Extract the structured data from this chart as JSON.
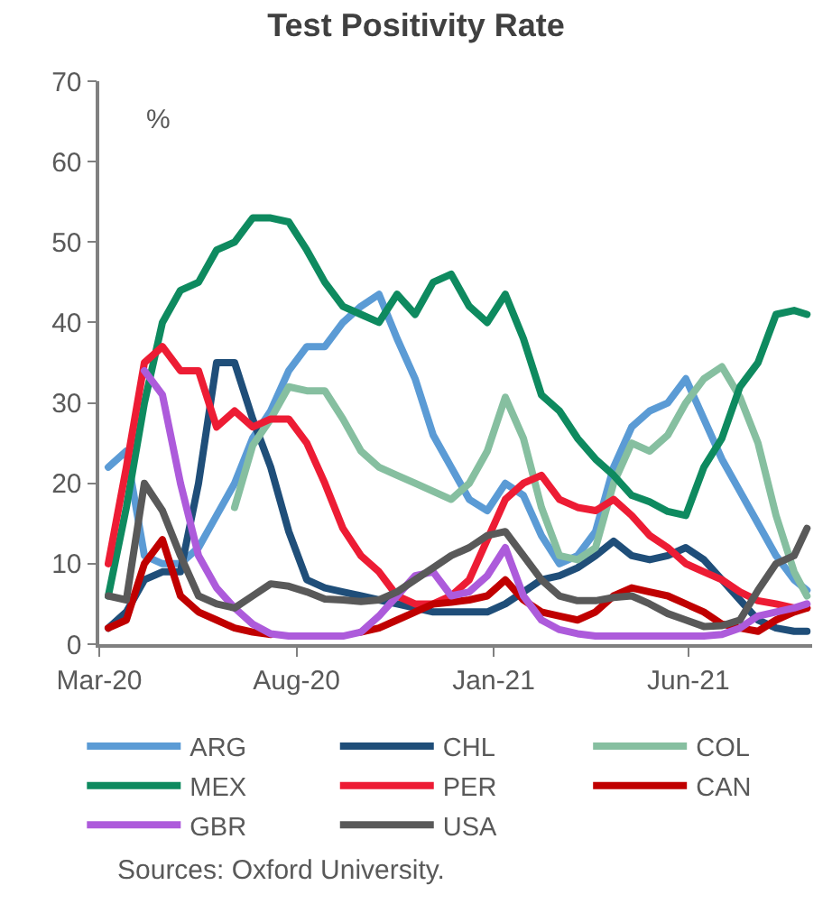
{
  "chart_data": {
    "type": "line",
    "title": "Test Positivity Rate",
    "ylabel": "%",
    "x": [
      "2020-03-08",
      "2020-03-22",
      "2020-04-05",
      "2020-04-19",
      "2020-05-03",
      "2020-05-17",
      "2020-05-31",
      "2020-06-14",
      "2020-06-28",
      "2020-07-12",
      "2020-07-26",
      "2020-08-09",
      "2020-08-23",
      "2020-09-06",
      "2020-09-20",
      "2020-10-04",
      "2020-10-18",
      "2020-11-01",
      "2020-11-15",
      "2020-11-29",
      "2020-12-13",
      "2020-12-27",
      "2021-01-10",
      "2021-01-24",
      "2021-02-07",
      "2021-02-21",
      "2021-03-07",
      "2021-03-21",
      "2021-04-04",
      "2021-04-18",
      "2021-05-02",
      "2021-05-16",
      "2021-05-30",
      "2021-06-13",
      "2021-06-27",
      "2021-07-11",
      "2021-07-25",
      "2021-08-08",
      "2021-08-22",
      "2021-09-01"
    ],
    "series": [
      {
        "name": "ARG",
        "color": "#5b9bd5",
        "values": [
          22,
          24,
          11,
          10,
          10,
          12,
          16,
          20,
          25.6,
          29,
          34,
          37,
          37,
          40,
          42,
          43.5,
          38,
          33,
          26,
          22,
          18,
          16.6,
          20,
          18.5,
          13.5,
          10,
          11,
          14,
          22,
          27,
          29,
          30,
          33,
          28,
          23,
          19,
          15,
          11,
          8,
          6.7
        ]
      },
      {
        "name": "CHL",
        "color": "#1f4e79",
        "values": [
          2,
          4,
          8,
          9,
          9,
          20,
          35,
          35,
          28,
          22,
          14,
          8,
          7,
          6.5,
          6,
          5.5,
          5,
          4.5,
          4,
          4,
          4,
          4,
          5,
          6.5,
          8,
          8.5,
          9.5,
          11,
          12.8,
          11,
          10.5,
          11,
          12,
          10.5,
          8,
          5.5,
          3,
          2,
          1.6,
          1.6
        ]
      },
      {
        "name": "COL",
        "color": "#86bfa0",
        "values": [
          null,
          null,
          null,
          null,
          null,
          null,
          null,
          17,
          24.7,
          28,
          32,
          31.5,
          31.5,
          28,
          24,
          22,
          21,
          20,
          19,
          18,
          20,
          24,
          30.7,
          25.6,
          17,
          11,
          10.5,
          12,
          20,
          25,
          24,
          26,
          30,
          33,
          34.5,
          30.7,
          25,
          16,
          9,
          6
        ]
      },
      {
        "name": "MEX",
        "color": "#0e8a5f",
        "values": [
          6,
          17,
          30,
          40,
          44,
          45,
          49,
          50,
          53,
          53,
          52.5,
          49,
          45,
          42,
          41,
          40,
          43.5,
          41,
          45,
          46,
          42,
          40,
          43.5,
          38,
          31,
          29,
          25.6,
          23,
          21,
          18.5,
          17.7,
          16.5,
          16,
          22,
          25.6,
          32,
          35,
          41,
          41.5,
          41
        ]
      },
      {
        "name": "PER",
        "color": "#ed1c34",
        "values": [
          10,
          22,
          35,
          37,
          34,
          34,
          27,
          29,
          27,
          28,
          28,
          25,
          20,
          14.4,
          11,
          9,
          6,
          5,
          5,
          6,
          8,
          13,
          18,
          20,
          21,
          18,
          17,
          16.6,
          18,
          16,
          13.5,
          12,
          10,
          9,
          8,
          6.5,
          5.4,
          5,
          4.5,
          4.5
        ]
      },
      {
        "name": "CAN",
        "color": "#c00000",
        "values": [
          2,
          3,
          10,
          13,
          6,
          4,
          3,
          2,
          1.5,
          1.2,
          null,
          null,
          null,
          null,
          1.5,
          2,
          3,
          4,
          5,
          5.2,
          5.5,
          6,
          8,
          5.5,
          4,
          3.5,
          3,
          4,
          6,
          7,
          6.5,
          6,
          5,
          4,
          2.5,
          2,
          1.6,
          3,
          4,
          4.5
        ]
      },
      {
        "name": "GBR",
        "color": "#ad5bdb",
        "values": [
          null,
          null,
          34,
          31,
          20,
          11,
          7,
          4.5,
          2.5,
          1.3,
          1,
          1,
          1,
          1,
          1.5,
          3.5,
          6,
          8.5,
          9,
          6,
          6.5,
          8.5,
          12,
          6,
          3,
          1.8,
          1.3,
          1,
          1,
          1,
          1,
          1,
          1,
          1,
          1.2,
          2,
          3.5,
          4,
          4.5,
          5
        ]
      },
      {
        "name": "USA",
        "color": "#595959",
        "values": [
          6,
          5.5,
          20,
          16.6,
          11,
          6,
          5,
          4.5,
          6,
          7.5,
          7.2,
          6.5,
          5.6,
          5.5,
          5.3,
          5.5,
          6.5,
          8,
          9.5,
          11,
          12,
          13.5,
          14,
          11,
          8,
          6,
          5.4,
          5.4,
          5.8,
          6,
          5,
          3.8,
          3,
          2.2,
          2.3,
          3,
          6.7,
          10,
          11,
          14.4
        ]
      }
    ],
    "xlim": [
      "2020-03-01",
      "2021-09-05"
    ],
    "xticks": [
      {
        "value": "2020-03-01",
        "label": "Mar-20"
      },
      {
        "value": "2020-08-01",
        "label": "Aug-20"
      },
      {
        "value": "2021-01-01",
        "label": "Jan-21"
      },
      {
        "value": "2021-06-01",
        "label": "Jun-21"
      }
    ],
    "ylim": [
      0,
      70
    ],
    "yticks": [
      0,
      10,
      20,
      30,
      40,
      50,
      60,
      70
    ],
    "legend": "bottom",
    "line_style": "solid",
    "annotations": [
      "Sources: Oxford University."
    ]
  }
}
